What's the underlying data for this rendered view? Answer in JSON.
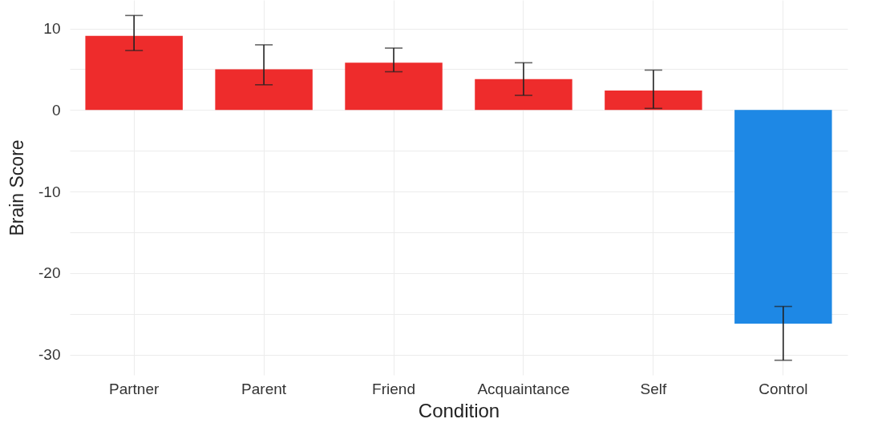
{
  "chart_data": {
    "type": "bar",
    "xlabel": "Condition",
    "ylabel": "Brain Score",
    "categories": [
      "Partner",
      "Parent",
      "Friend",
      "Acquaintance",
      "Self",
      "Control"
    ],
    "values": [
      9.1,
      5.0,
      5.8,
      3.8,
      2.4,
      -26.2
    ],
    "colors": [
      "#ee2c2c",
      "#ee2c2c",
      "#ee2c2c",
      "#ee2c2c",
      "#ee2c2c",
      "#1e88e5"
    ],
    "errors": [
      [
        7.3,
        11.6
      ],
      [
        3.1,
        8.0
      ],
      [
        4.7,
        7.6
      ],
      [
        1.8,
        5.8
      ],
      [
        0.2,
        4.9
      ],
      [
        -30.7,
        -24.1
      ]
    ],
    "ylim": [
      -32.5,
      13.5
    ],
    "yticks": [
      -30,
      {
        "value": -25,
        "label": null
      },
      -20,
      {
        "value": -15,
        "label": null
      },
      -10,
      {
        "value": -5,
        "label": null
      },
      0,
      {
        "value": 5,
        "label": null
      },
      10
    ],
    "grid": true,
    "legend": false
  }
}
